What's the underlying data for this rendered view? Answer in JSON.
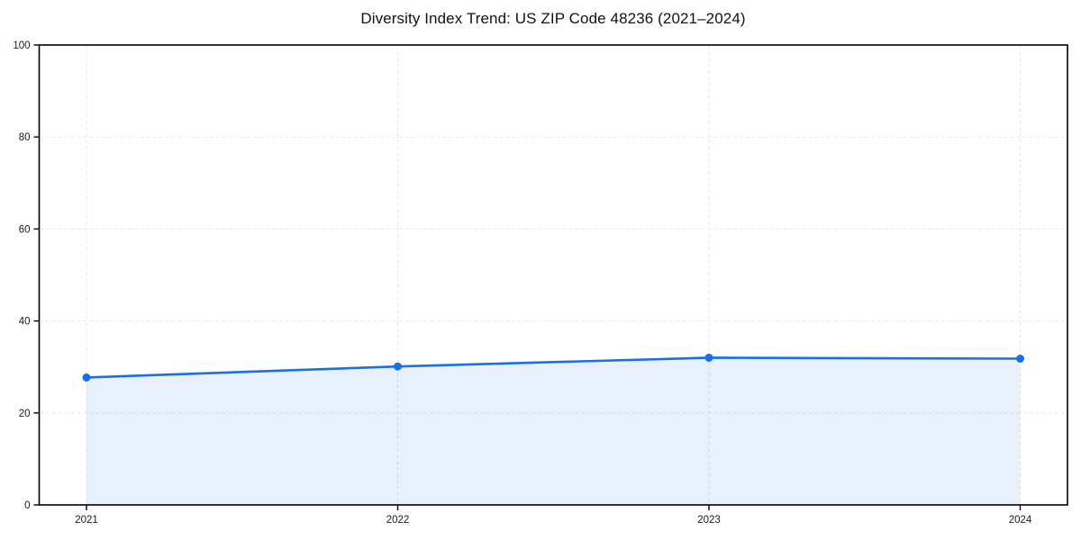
{
  "title": "Diversity Index Trend: US ZIP Code 48236 (2021–2024)",
  "chart_data": {
    "type": "area",
    "title": "Diversity Index Trend: US ZIP Code 48236 (2021–2024)",
    "x": [
      2021,
      2022,
      2023,
      2024
    ],
    "categories": [
      "2021",
      "2022",
      "2023",
      "2024"
    ],
    "series": [
      {
        "name": "Diversity Index",
        "values": [
          27.7,
          30.1,
          32.0,
          31.8
        ]
      }
    ],
    "xlabel": "",
    "ylabel": "",
    "ylim": [
      0,
      100
    ],
    "yticks": [
      0,
      20,
      40,
      60,
      80,
      100
    ],
    "grid": true,
    "grid_style": "dashed",
    "legend": "none",
    "marker": "circle",
    "colors": {
      "line": "#1a6fe3",
      "marker": "#1a6fe3",
      "fill": "rgba(26, 111, 227, 0.10)",
      "grid": "#e6e6e6",
      "axis": "#000000",
      "tick_label": "#1a1a1a",
      "background": "#ffffff"
    }
  }
}
